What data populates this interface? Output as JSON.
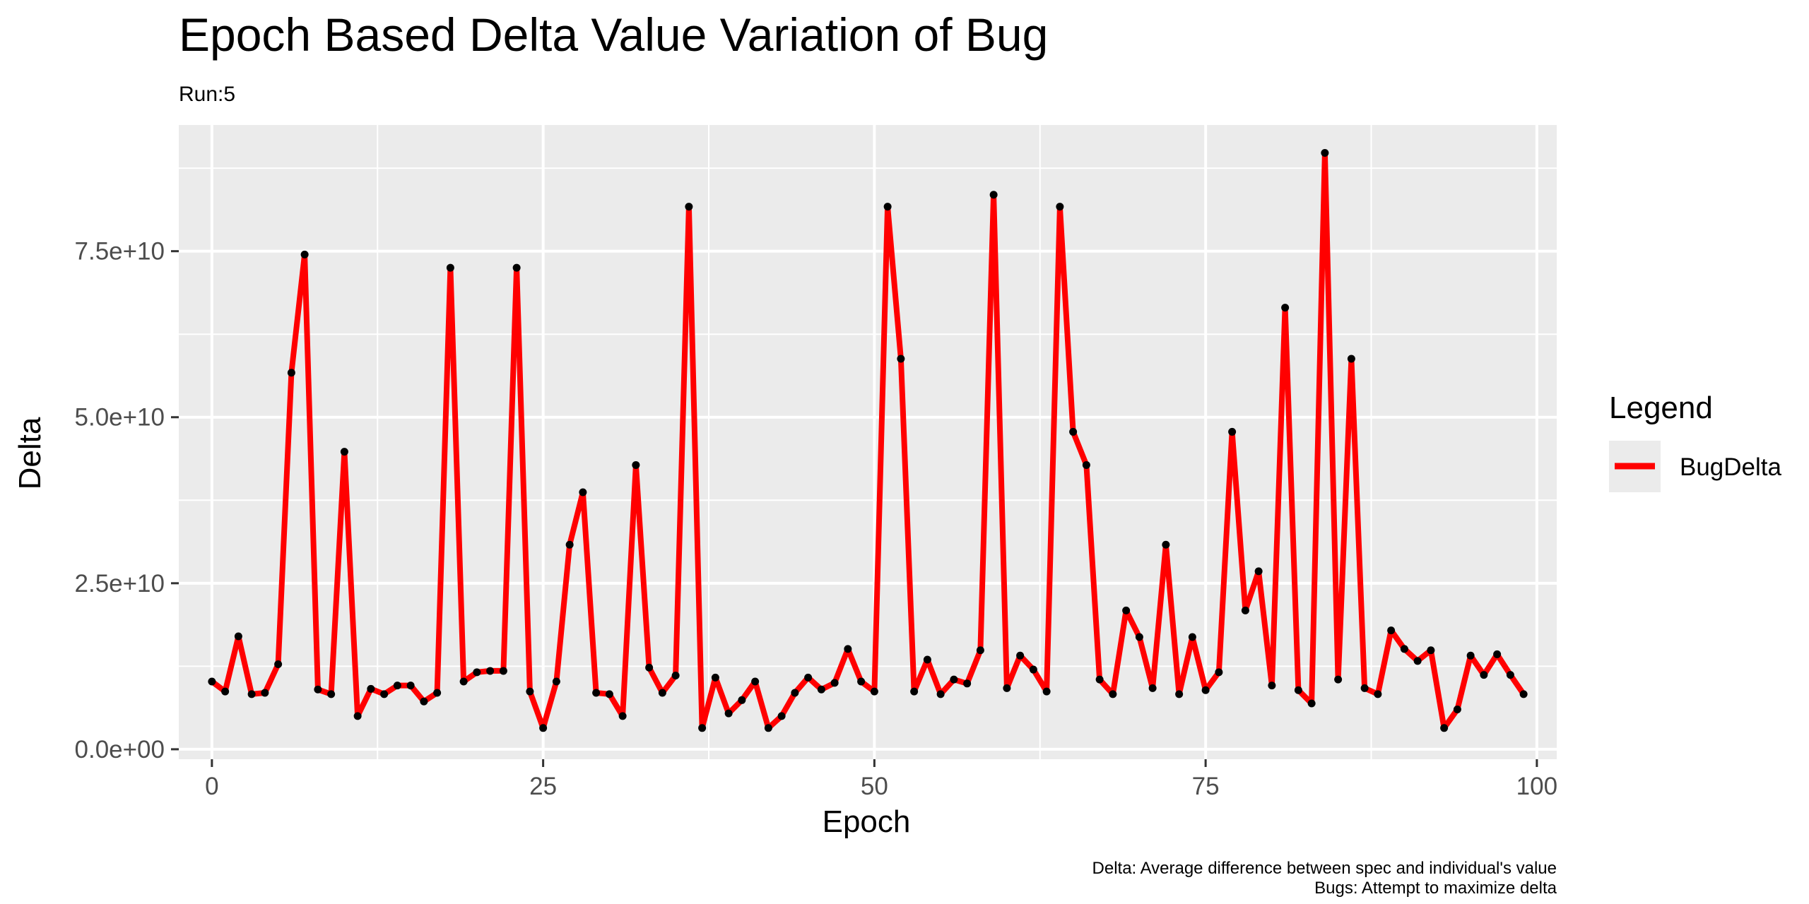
{
  "chart_data": {
    "type": "line",
    "title": "Epoch Based Delta Value Variation of Bug",
    "subtitle": "Run:5",
    "xlabel": "Epoch",
    "ylabel": "Delta",
    "xlim": [
      -2.5,
      101.5
    ],
    "ylim": [
      -1500000000.0,
      94000000000.0
    ],
    "x_ticks": [
      0,
      25,
      50,
      75,
      100
    ],
    "x_tick_labels": [
      "0",
      "25",
      "50",
      "75",
      "100"
    ],
    "y_ticks": [
      0,
      25000000000,
      50000000000,
      75000000000
    ],
    "y_tick_labels": [
      "0.0e+00",
      "2.5e+10",
      "5.0e+10",
      "7.5e+10"
    ],
    "grid": true,
    "legend": {
      "title": "Legend",
      "position": "right"
    },
    "caption": [
      "Delta: Average difference between spec and individual's value",
      "Bugs: Attempt to maximize delta"
    ],
    "x": [
      0,
      1,
      2,
      3,
      4,
      5,
      6,
      7,
      8,
      9,
      10,
      11,
      12,
      13,
      14,
      15,
      16,
      17,
      18,
      19,
      20,
      21,
      22,
      23,
      24,
      25,
      26,
      27,
      28,
      29,
      30,
      31,
      32,
      33,
      34,
      35,
      36,
      37,
      38,
      39,
      40,
      41,
      42,
      43,
      44,
      45,
      46,
      47,
      48,
      49,
      50,
      51,
      52,
      53,
      54,
      55,
      56,
      57,
      58,
      59,
      60,
      61,
      62,
      63,
      64,
      65,
      66,
      67,
      68,
      69,
      70,
      71,
      72,
      73,
      74,
      75,
      76,
      77,
      78,
      79,
      80,
      81,
      82,
      83,
      84,
      85,
      86,
      87,
      88,
      89,
      90,
      91,
      92,
      93,
      94,
      95,
      96,
      97,
      98,
      99
    ],
    "series": [
      {
        "name": "BugDelta",
        "color": "#ff0000",
        "point_color": "#000000",
        "values": [
          10200000000.0,
          8700000000.0,
          17000000000.0,
          8300000000.0,
          8500000000.0,
          12800000000.0,
          56700000000.0,
          74500000000.0,
          9000000000.0,
          8300000000.0,
          44800000000.0,
          5000000000.0,
          9100000000.0,
          8300000000.0,
          9600000000.0,
          9600000000.0,
          7200000000.0,
          8500000000.0,
          72500000000.0,
          10200000000.0,
          11600000000.0,
          11800000000.0,
          11800000000.0,
          72500000000.0,
          8700000000.0,
          3200000000.0,
          10200000000.0,
          30800000000.0,
          38700000000.0,
          8500000000.0,
          8300000000.0,
          5000000000.0,
          42800000000.0,
          12300000000.0,
          8500000000.0,
          11100000000.0,
          81700000000.0,
          3200000000.0,
          10800000000.0,
          5400000000.0,
          7400000000.0,
          10200000000.0,
          3200000000.0,
          5000000000.0,
          8500000000.0,
          10800000000.0,
          9000000000.0,
          10000000000.0,
          15100000000.0,
          10200000000.0,
          8700000000.0,
          81700000000.0,
          58800000000.0,
          8700000000.0,
          13500000000.0,
          8300000000.0,
          10500000000.0,
          9900000000.0,
          14900000000.0,
          83500000000.0,
          9200000000.0,
          14100000000.0,
          12000000000.0,
          8700000000.0,
          81700000000.0,
          47800000000.0,
          42800000000.0,
          10500000000.0,
          8300000000.0,
          20900000000.0,
          16900000000.0,
          9200000000.0,
          30800000000.0,
          8300000000.0,
          16900000000.0,
          8900000000.0,
          11600000000.0,
          47800000000.0,
          20900000000.0,
          26800000000.0,
          9600000000.0,
          66500000000.0,
          8900000000.0,
          6900000000.0,
          89800000000.0,
          10500000000.0,
          58800000000.0,
          9200000000.0,
          8300000000.0,
          17900000000.0,
          15100000000.0,
          13300000000.0,
          14900000000.0,
          3200000000.0,
          6000000000.0,
          14100000000.0,
          11200000000.0,
          14300000000.0,
          11200000000.0,
          8300000000.0
        ]
      }
    ]
  }
}
